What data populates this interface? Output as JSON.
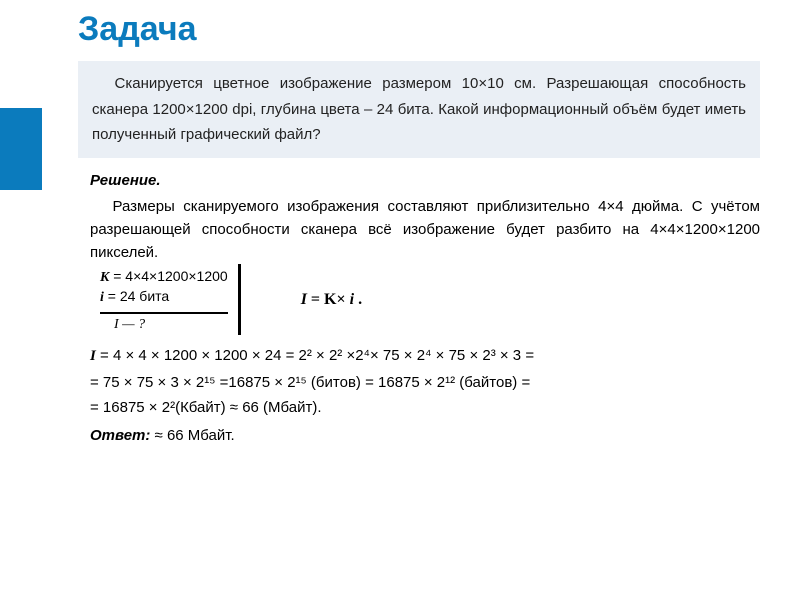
{
  "accent_color": "#0b7bbd",
  "box_bg": "#eaeff5",
  "title": "Задача",
  "problem": "Сканируется цветное изображение размером 10×10 см. Разрешающая способность сканера 1200×1200 dpi, глубина цвета – 24 бита. Какой информационный объём будет иметь полученный графический файл?",
  "solution_heading": "Решение.",
  "solution_text": "Размеры сканируемого изображения составляют приблизительно 4×4 дюйма. С учётом разрешающей способности сканера всё изображение будет разбито на 4×4×1200×1200 пикселей.",
  "given": {
    "K_label": "K",
    "K_value": " = 4×4×1200×1200",
    "i_label": "i",
    "i_value": " = 24 бита",
    "unknown_label": "I",
    "unknown_suffix": "  — ?"
  },
  "formula": {
    "lhs": "I",
    "mid": " = K× ",
    "rhs": "i",
    "tail": " ."
  },
  "calc_line1_pre": "I",
  "calc_line1": " = 4 × 4 × 1200 × 1200 × 24 = 2² × 2² ×2⁴× 75 × 2⁴ × 75 × 2³ × 3 =",
  "calc_line2": "= 75 × 75 × 3 × 2¹⁵ =16875 × 2¹⁵ (битов) = 16875 × 2¹² (байтов) =",
  "calc_line3": "= 16875 × 2²(Кбайт) ≈ 66 (Мбайт).",
  "answer_label": "Ответ:",
  "answer_value": "  ≈ 66 Мбайт."
}
